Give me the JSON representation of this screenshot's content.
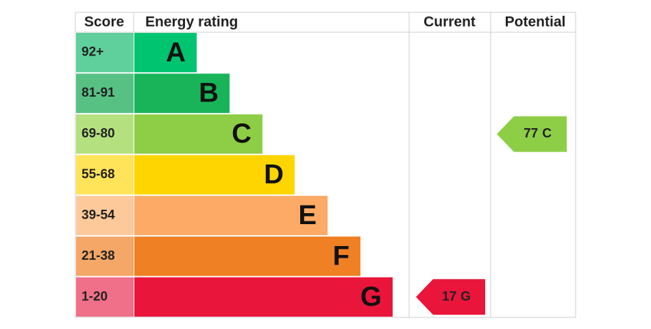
{
  "header": {
    "score": "Score",
    "rating": "Energy rating",
    "current": "Current",
    "potential": "Potential"
  },
  "bands": [
    {
      "score": "92+",
      "letter": "A",
      "color": "#00c46f",
      "light": "#5fcf9c"
    },
    {
      "score": "81-91",
      "letter": "B",
      "color": "#19b459",
      "light": "#57c184"
    },
    {
      "score": "69-80",
      "letter": "C",
      "color": "#8dce46",
      "light": "#b5e07f"
    },
    {
      "score": "55-68",
      "letter": "D",
      "color": "#ffd500",
      "light": "#ffe45a"
    },
    {
      "score": "39-54",
      "letter": "E",
      "color": "#fcaa65",
      "light": "#fdc99a"
    },
    {
      "score": "21-38",
      "letter": "F",
      "color": "#ef8023",
      "light": "#f4a766"
    },
    {
      "score": "1-20",
      "letter": "G",
      "color": "#e9153b",
      "light": "#f07089"
    }
  ],
  "current": {
    "score": 17,
    "rating": "G"
  },
  "potential": {
    "score": 77,
    "rating": "C"
  }
}
